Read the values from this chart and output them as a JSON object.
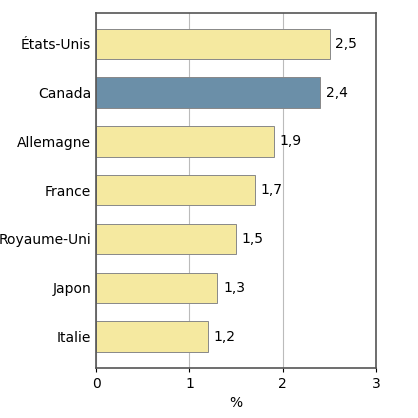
{
  "categories": [
    "Italie",
    "Japon",
    "Royaume-Uni",
    "France",
    "Allemagne",
    "Canada",
    "États-Unis"
  ],
  "values": [
    1.2,
    1.3,
    1.5,
    1.7,
    1.9,
    2.4,
    2.5
  ],
  "bar_colors": [
    "#f5e9a0",
    "#f5e9a0",
    "#f5e9a0",
    "#f5e9a0",
    "#f5e9a0",
    "#6b8fa8",
    "#f5e9a0"
  ],
  "bar_edge_color": "#888888",
  "labels": [
    "1,2",
    "1,3",
    "1,5",
    "1,7",
    "1,9",
    "2,4",
    "2,5"
  ],
  "xlabel": "%",
  "xlim": [
    0,
    3
  ],
  "xticks": [
    0,
    1,
    2,
    3
  ],
  "grid_color": "#bbbbbb",
  "background_color": "#ffffff",
  "label_fontsize": 10,
  "tick_fontsize": 10,
  "ytick_fontsize": 10,
  "bar_height": 0.62,
  "spine_color": "#555555"
}
